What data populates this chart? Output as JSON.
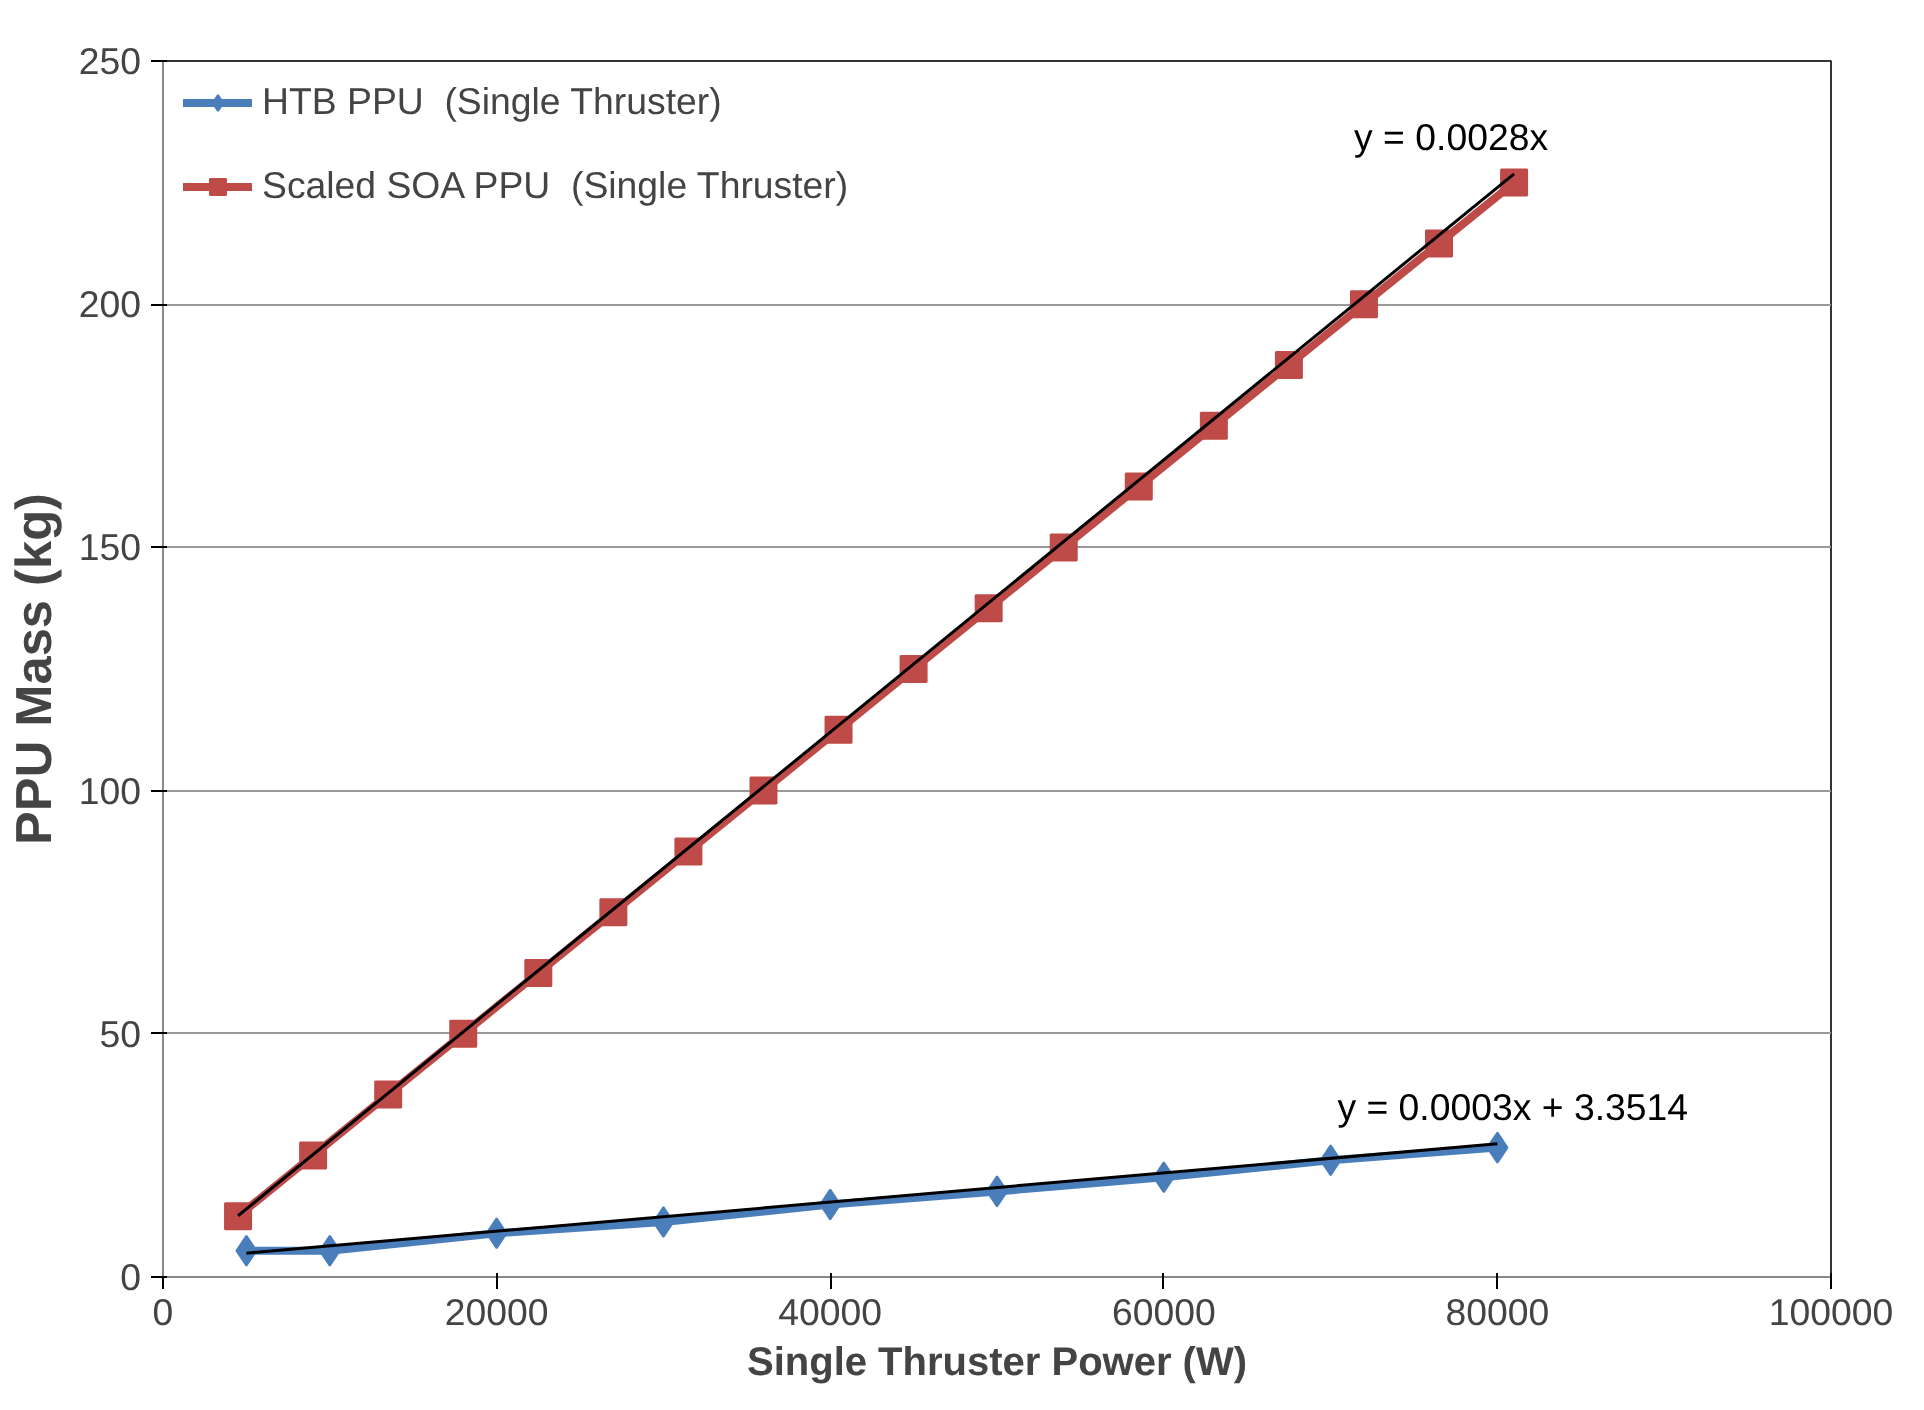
{
  "chart_data": {
    "type": "line",
    "xlabel": "Single Thruster Power (W)",
    "ylabel": "PPU Mass (kg)",
    "xlim": [
      0,
      100000
    ],
    "xticks": [
      0,
      20000,
      40000,
      60000,
      80000,
      100000
    ],
    "ylim": [
      0,
      250
    ],
    "yticks": [
      0,
      50,
      100,
      150,
      200,
      250
    ],
    "grid": "y",
    "legend": "top left",
    "series": [
      {
        "name": "HTB PPU  (Single Thruster)",
        "color": "#4a7ebb",
        "marker": "diamond",
        "x": [
          5000,
          10000,
          20000,
          30000,
          40000,
          50000,
          60000,
          70000,
          80000
        ],
        "values": [
          5.4,
          5.4,
          9,
          11.3,
          14.9,
          17.6,
          20.5,
          24,
          26.6
        ]
      },
      {
        "name": "Scaled SOA PPU  (Single Thruster)",
        "color": "#be4b48",
        "marker": "square",
        "x": [
          4500,
          9000,
          13500,
          18000,
          22500,
          27000,
          31500,
          36000,
          40500,
          45000,
          49500,
          54000,
          58500,
          63000,
          67500,
          72000,
          76500,
          81000
        ],
        "values": [
          12.5,
          25,
          37.5,
          50,
          62.5,
          75,
          87.5,
          100,
          112.5,
          125,
          137.5,
          150,
          162.5,
          175,
          187.5,
          200,
          212.5,
          225
        ]
      },
      {
        "color": "#000000",
        "marker": "none",
        "x": [
          5000,
          80000
        ],
        "values": [
          4.9,
          27.4
        ]
      },
      {
        "color": "#000000",
        "marker": "none",
        "x": [
          4500,
          81000
        ],
        "values": [
          12.6,
          226.8
        ]
      }
    ],
    "annotations": [
      {
        "text": "y = 0.0003x + 3.3514",
        "x": 80000,
        "y": 27.4
      },
      {
        "text": "y = 0.0028x",
        "x": 81000,
        "y": 226.8
      }
    ]
  }
}
